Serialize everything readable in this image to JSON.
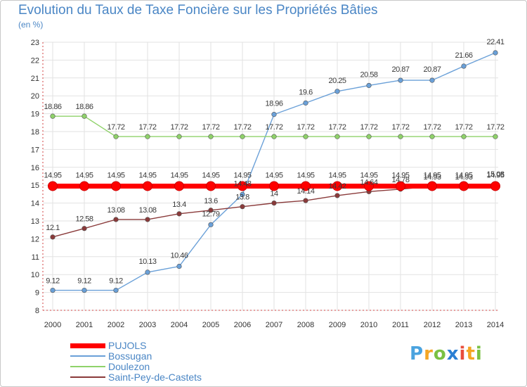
{
  "chart_data": {
    "type": "line",
    "title": "Evolution du Taux de Taxe Foncière sur les Propriétés Bâties",
    "ylabel": "(en %)",
    "xlabel": "",
    "categories": [
      "2000",
      "2001",
      "2002",
      "2003",
      "2004",
      "2005",
      "2006",
      "2007",
      "2008",
      "2009",
      "2010",
      "2011",
      "2012",
      "2013",
      "2014"
    ],
    "ylim": [
      8,
      23
    ],
    "yticks": [
      "8",
      "9",
      "10",
      "11",
      "12",
      "13",
      "14",
      "15",
      "16",
      "17",
      "18",
      "19",
      "20",
      "21",
      "22",
      "23"
    ],
    "series": [
      {
        "name": "PUJOLS",
        "color": "#ff0000",
        "values": [
          14.95,
          14.95,
          14.95,
          14.95,
          14.95,
          14.95,
          14.95,
          14.95,
          14.95,
          14.95,
          14.95,
          14.95,
          14.95,
          14.95,
          14.95
        ],
        "labels": [
          "14.95",
          "14.95",
          "14.95",
          "14.95",
          "14.95",
          "14.95",
          "14.95",
          "14.95",
          "14.95",
          "14.95",
          "14.95",
          "14.95",
          "14.95",
          "14.95",
          "14.95"
        ]
      },
      {
        "name": "Bossugan",
        "color": "#6aa0d8",
        "values": [
          9.12,
          9.12,
          9.12,
          10.13,
          10.46,
          12.79,
          14.48,
          18.96,
          19.6,
          20.25,
          20.58,
          20.87,
          20.87,
          21.66,
          22.41
        ],
        "labels": [
          "9.12",
          "9.12",
          "9.12",
          "10.13",
          "10.46",
          "12.79",
          "14.48",
          "18.96",
          "19.6",
          "20.25",
          "20.58",
          "20.87",
          "20.87",
          "21.66",
          "22.41"
        ]
      },
      {
        "name": "Doulezon",
        "color": "#8fd26a",
        "values": [
          18.86,
          18.86,
          17.72,
          17.72,
          17.72,
          17.72,
          17.72,
          17.72,
          17.72,
          17.72,
          17.72,
          17.72,
          17.72,
          17.72,
          17.72
        ],
        "labels": [
          "18.86",
          "18.86",
          "17.72",
          "17.72",
          "17.72",
          "17.72",
          "17.72",
          "17.72",
          "17.72",
          "17.72",
          "17.72",
          "17.72",
          "17.72",
          "17.72",
          "17.72"
        ]
      },
      {
        "name": "Saint-Pey-de-Castets",
        "color": "#8a3a3a",
        "values": [
          12.1,
          12.58,
          13.08,
          13.08,
          13.4,
          13.6,
          13.8,
          14,
          14.14,
          14.42,
          14.64,
          14.78,
          14.93,
          14.93,
          15.08
        ],
        "labels": [
          "12.1",
          "12.58",
          "13.08",
          "13.08",
          "13.4",
          "13.6",
          "13.8",
          "14",
          "14.14",
          "14.42",
          "14.64",
          "14.78",
          "14.93",
          "14.93",
          "15.08"
        ]
      }
    ]
  },
  "brand": {
    "letters": [
      "P",
      "r",
      "o",
      "x",
      "i",
      "t",
      "i"
    ],
    "colors": [
      "#4aa3df",
      "#f5a623",
      "#7ac143",
      "#2a7fd4",
      "#e94e3c",
      "#f5a623",
      "#7ac143"
    ]
  }
}
